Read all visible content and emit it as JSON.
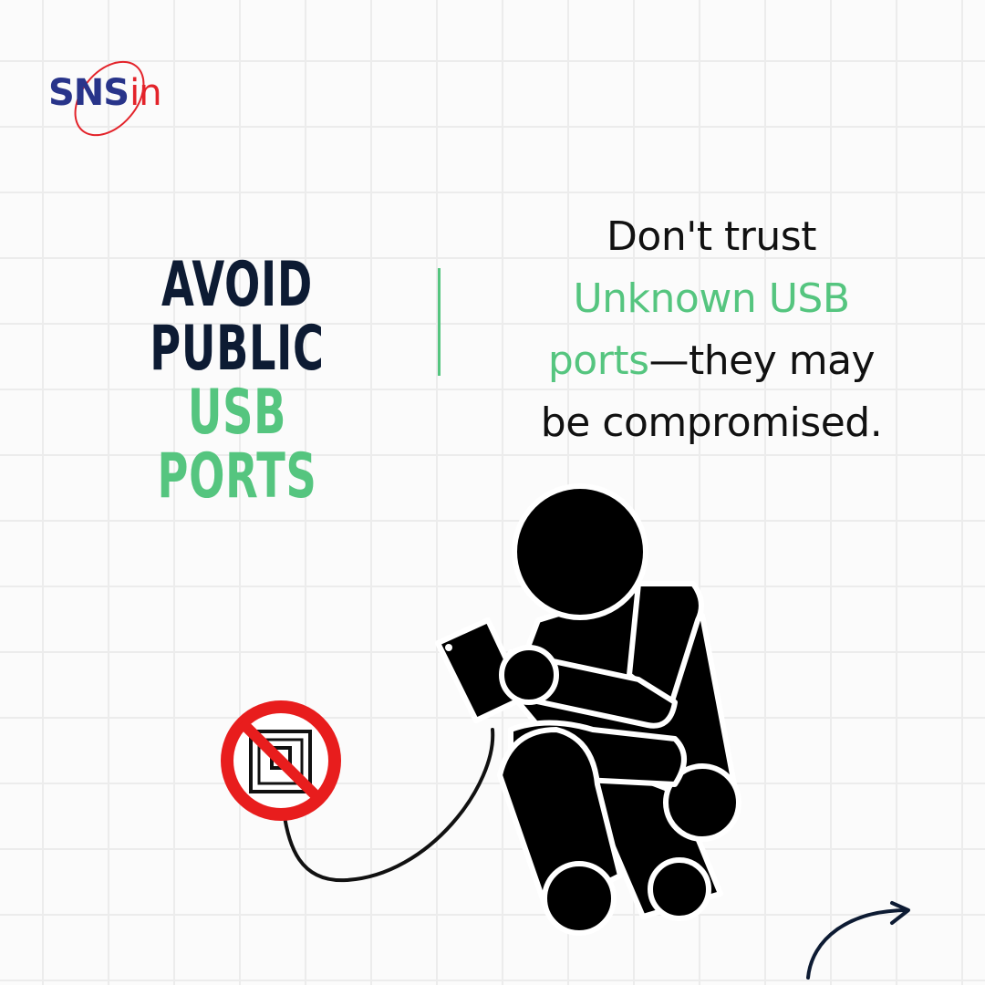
{
  "logo": {
    "sns": "SNS",
    "in": "in"
  },
  "headline": {
    "line1": "AVOID PUBLIC",
    "line2": "USB PORTS"
  },
  "message": {
    "part1": "Don't trust",
    "highlight1": "Unknown USB",
    "highlight2": "ports",
    "part2": "—they may",
    "part3": "be compromised."
  },
  "colors": {
    "navy": "#0d1b33",
    "green": "#55c57f",
    "logo_blue": "#28348a",
    "logo_red": "#e3232a",
    "prohibition_red": "#e81d1d"
  },
  "icons": [
    "person-charging-phone-icon",
    "no-usb-port-icon",
    "curved-arrow-icon"
  ]
}
